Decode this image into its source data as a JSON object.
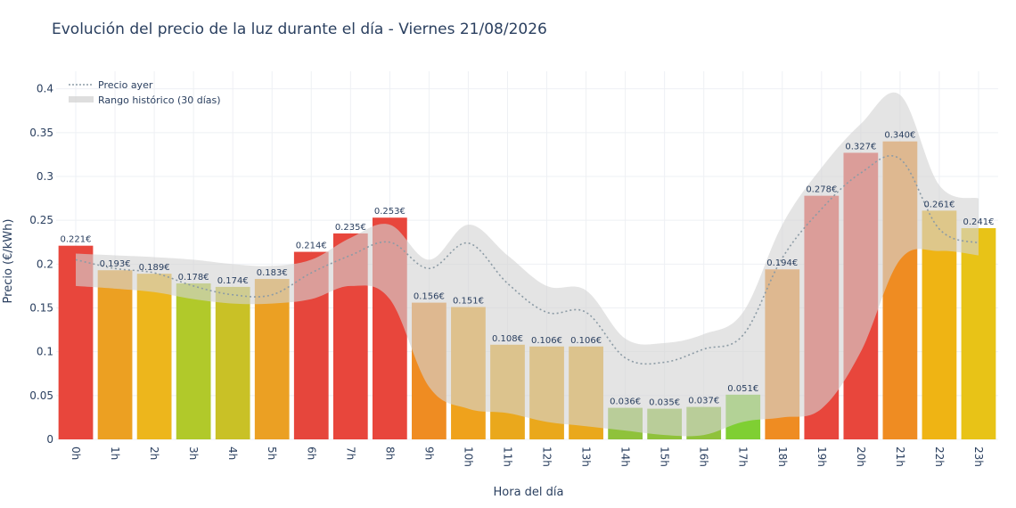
{
  "chart_data": {
    "type": "bar",
    "title": "Evolución del precio de la luz durante el día - Viernes 21/08/2026",
    "xlabel": "Hora del día",
    "ylabel": "Precio (€/kWh)",
    "categories": [
      "0h",
      "1h",
      "2h",
      "3h",
      "4h",
      "5h",
      "6h",
      "7h",
      "8h",
      "9h",
      "10h",
      "11h",
      "12h",
      "13h",
      "14h",
      "15h",
      "16h",
      "17h",
      "18h",
      "19h",
      "20h",
      "21h",
      "22h",
      "23h"
    ],
    "y_ticks": [
      "0",
      "0.05",
      "0.1",
      "0.15",
      "0.2",
      "0.25",
      "0.3",
      "0.35",
      "0.4"
    ],
    "ylim": [
      0,
      0.42
    ],
    "grid": true,
    "legend_position": "top-left",
    "series": [
      {
        "type": "bar",
        "values": [
          0.221,
          0.193,
          0.189,
          0.178,
          0.174,
          0.183,
          0.214,
          0.235,
          0.253,
          0.156,
          0.151,
          0.108,
          0.106,
          0.106,
          0.036,
          0.035,
          0.037,
          0.051,
          0.194,
          0.278,
          0.327,
          0.34,
          0.261,
          0.241
        ],
        "labels": [
          "0.221€",
          "0.193€",
          "0.189€",
          "0.178€",
          "0.174€",
          "0.183€",
          "0.214€",
          "0.235€",
          "0.253€",
          "0.156€",
          "0.151€",
          "0.108€",
          "0.106€",
          "0.106€",
          "0.036€",
          "0.035€",
          "0.037€",
          "0.051€",
          "0.194€",
          "0.278€",
          "0.327€",
          "0.340€",
          "0.261€",
          "0.241€"
        ],
        "colors": [
          "#e8463c",
          "#eca022",
          "#edb61c",
          "#b1c92a",
          "#c9c126",
          "#eba023",
          "#e6463c",
          "#e8463c",
          "#e8463c",
          "#ef8c22",
          "#efa21c",
          "#eaa81c",
          "#eaa81c",
          "#eaa81c",
          "#8fc23b",
          "#8fc23b",
          "#8fc23b",
          "#7fcf33",
          "#ef8c22",
          "#e8463c",
          "#e8463c",
          "#ef8c22",
          "#efb414",
          "#e8c317"
        ]
      },
      {
        "name": "Precio ayer",
        "type": "line",
        "values": [
          0.205,
          0.195,
          0.19,
          0.175,
          0.165,
          0.165,
          0.19,
          0.21,
          0.225,
          0.195,
          0.224,
          0.178,
          0.145,
          0.145,
          0.093,
          0.088,
          0.103,
          0.119,
          0.207,
          0.263,
          0.304,
          0.32,
          0.24,
          0.224
        ],
        "color": "#8c9ba5"
      },
      {
        "name": "Rango histórico (30 días)",
        "type": "area-range",
        "upper": [
          0.212,
          0.21,
          0.208,
          0.205,
          0.2,
          0.198,
          0.205,
          0.23,
          0.245,
          0.205,
          0.245,
          0.21,
          0.175,
          0.17,
          0.115,
          0.11,
          0.12,
          0.145,
          0.245,
          0.31,
          0.36,
          0.393,
          0.29,
          0.275
        ],
        "lower": [
          0.175,
          0.172,
          0.168,
          0.16,
          0.155,
          0.155,
          0.16,
          0.175,
          0.16,
          0.06,
          0.035,
          0.03,
          0.02,
          0.015,
          0.01,
          0.005,
          0.005,
          0.02,
          0.025,
          0.035,
          0.1,
          0.205,
          0.215,
          0.21
        ],
        "color": "#d3d3d3"
      }
    ]
  }
}
